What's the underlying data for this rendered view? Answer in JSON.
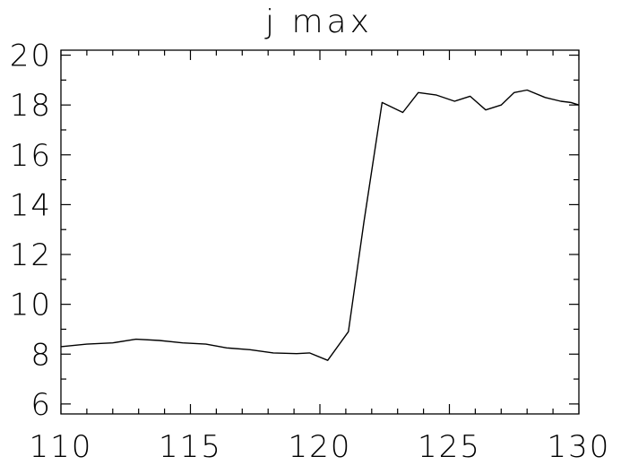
{
  "chart_data": {
    "type": "line",
    "title": "j max",
    "xlabel": "",
    "ylabel": "",
    "xlim": [
      110,
      130
    ],
    "ylim": [
      5.6,
      20.2
    ],
    "xticks": [
      110,
      115,
      120,
      125,
      130
    ],
    "yticks": [
      6,
      8,
      10,
      12,
      14,
      16,
      18,
      20
    ],
    "xminor_per_major": 5,
    "yminor_per_major": 2,
    "grid": false,
    "series": [
      {
        "x": [
          110.0,
          111.0,
          112.0,
          112.9,
          113.8,
          114.7,
          115.6,
          116.4,
          117.3,
          118.2,
          119.1,
          119.6,
          120.3,
          121.1,
          121.7,
          122.4,
          123.2,
          123.8,
          124.5,
          125.2,
          125.8,
          126.4,
          127.0,
          127.5,
          128.0,
          128.7,
          129.3,
          129.7,
          130.0
        ],
        "y": [
          8.3,
          8.4,
          8.45,
          8.6,
          8.55,
          8.45,
          8.4,
          8.25,
          8.18,
          8.05,
          8.02,
          8.05,
          7.75,
          8.9,
          13.3,
          18.1,
          17.7,
          18.5,
          18.4,
          18.15,
          18.35,
          17.8,
          18.0,
          18.5,
          18.6,
          18.3,
          18.15,
          18.1,
          18.0
        ]
      }
    ]
  }
}
